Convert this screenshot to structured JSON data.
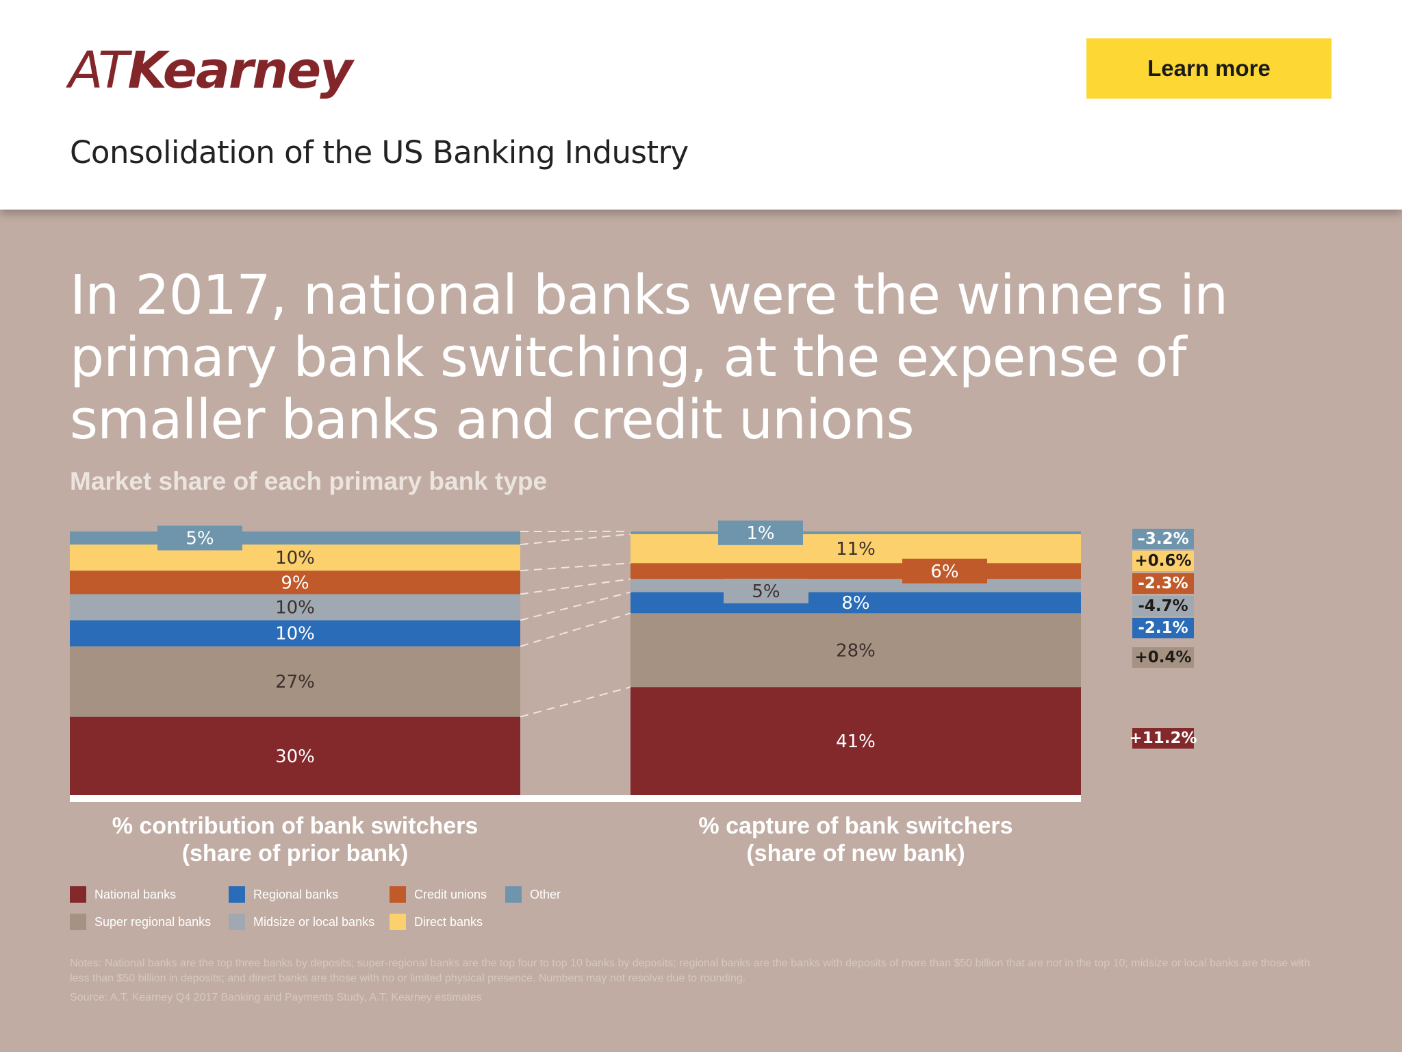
{
  "header": {
    "logo_at": "AT",
    "logo_name": "Kearney",
    "learn_more": "Learn more",
    "subtitle": "Consolidation of the US Banking Industry"
  },
  "headline": "In 2017, national banks were the winners in primary bank switching, at the expense of smaller banks and credit unions",
  "chart_data": {
    "type": "bar",
    "title": "Market share of each primary bank type",
    "categories": [
      "% contribution of bank switchers (share of prior bank)",
      "% capture of bank switchers (share of new bank)"
    ],
    "axis_labels": [
      {
        "line1": "% contribution of bank switchers",
        "line2": "(share of prior bank)"
      },
      {
        "line1": "% capture of bank switchers",
        "line2": "(share of new bank)"
      }
    ],
    "ylim": [
      0,
      100
    ],
    "stacked": true,
    "series": [
      {
        "name": "National banks",
        "color": "#83282b",
        "values": [
          30,
          41
        ],
        "labels": [
          "30%",
          "41%"
        ],
        "change": "+11.2%"
      },
      {
        "name": "Super regional banks",
        "color": "#a59283",
        "values": [
          27,
          28
        ],
        "labels": [
          "27%",
          "28%"
        ],
        "change": "+0.4%"
      },
      {
        "name": "Regional banks",
        "color": "#2a6cb8",
        "values": [
          10,
          8
        ],
        "labels": [
          "10%",
          "8%"
        ],
        "change": "-2.1%"
      },
      {
        "name": "Midsize or local banks",
        "color": "#a0a9b2",
        "values": [
          10,
          5
        ],
        "labels": [
          "10%",
          "5%"
        ],
        "change": "-4.7%"
      },
      {
        "name": "Credit unions",
        "color": "#c05a2a",
        "values": [
          9,
          6
        ],
        "labels": [
          "9%",
          "6%"
        ],
        "change": "-2.3%"
      },
      {
        "name": "Direct banks",
        "color": "#fcd06c",
        "values": [
          10,
          11
        ],
        "labels": [
          "10%",
          "11%"
        ],
        "change": "+0.6%"
      },
      {
        "name": "Other",
        "color": "#6f95ad",
        "values": [
          5,
          1
        ],
        "labels": [
          "5%",
          "1%"
        ],
        "change": "–3.2%"
      }
    ],
    "legend": [
      {
        "name": "National banks",
        "color": "#83282b"
      },
      {
        "name": "Regional banks",
        "color": "#2a6cb8"
      },
      {
        "name": "Credit unions",
        "color": "#c05a2a"
      },
      {
        "name": "Other",
        "color": "#6f95ad"
      },
      {
        "name": "Super regional banks",
        "color": "#a59283"
      },
      {
        "name": "Midsize or local banks",
        "color": "#a0a9b2"
      },
      {
        "name": "Direct banks",
        "color": "#fcd06c"
      }
    ]
  },
  "notes": "Notes: National banks are the top three banks by deposits; super-regional banks are the top four to top 10 banks by deposits; regional banks are the banks with deposits of more than $50 billion that are not in the top 10; midsize or local banks are those with less than $50 billion in deposits; and direct banks are those with no or limited physical presence. Numbers may not resolve due to rounding.",
  "source": "Source: A.T. Kearney Q4 2017 Banking and Payments Study, A.T. Kearney estimates"
}
